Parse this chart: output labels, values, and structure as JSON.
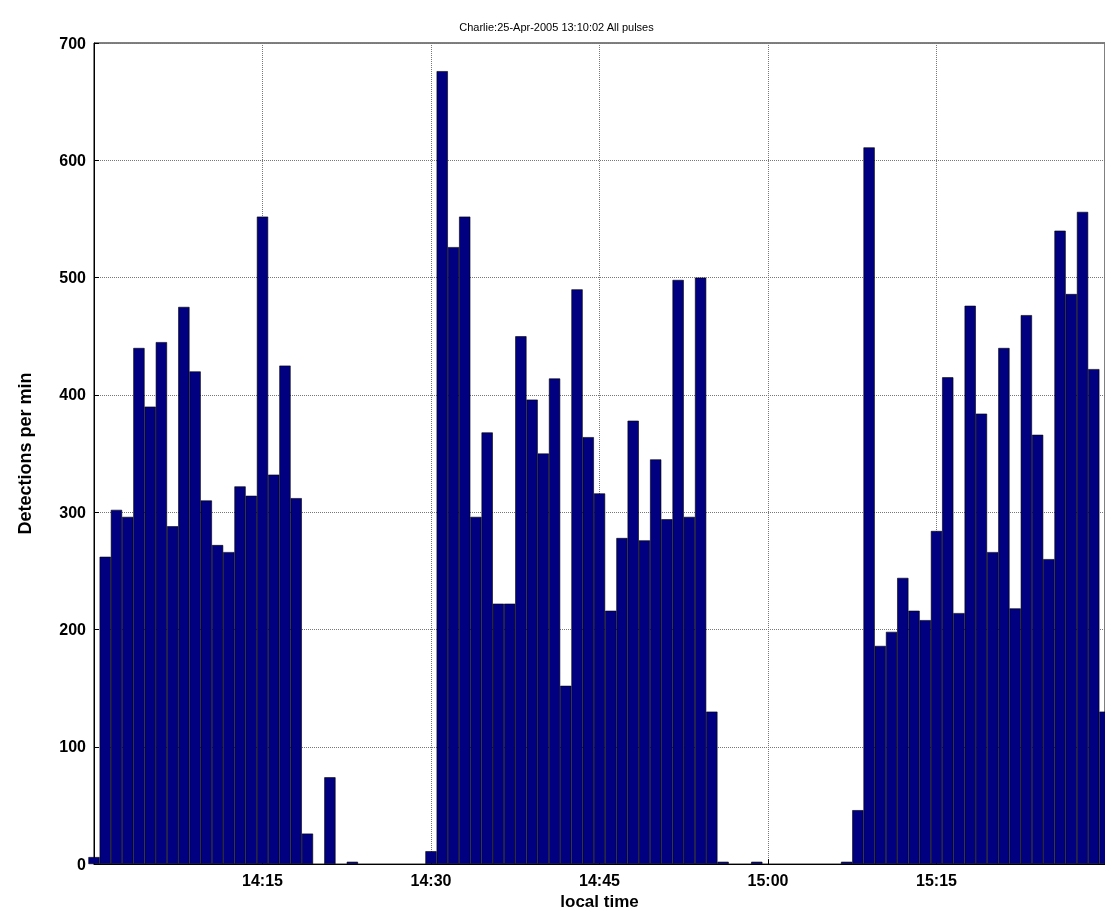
{
  "chart_data": {
    "type": "bar",
    "title": "Charlie:25-Apr-2005 13:10:02 All pulses",
    "xlabel": "local time",
    "ylabel": "Detections per min",
    "x": [
      "2005-04-25T14:00",
      "2005-04-25T14:01",
      "2005-04-25T14:02",
      "2005-04-25T14:03",
      "2005-04-25T14:04",
      "2005-04-25T14:05",
      "2005-04-25T14:06",
      "2005-04-25T14:07",
      "2005-04-25T14:08",
      "2005-04-25T14:09",
      "2005-04-25T14:10",
      "2005-04-25T14:11",
      "2005-04-25T14:12",
      "2005-04-25T14:13",
      "2005-04-25T14:14",
      "2005-04-25T14:15",
      "2005-04-25T14:16",
      "2005-04-25T14:17",
      "2005-04-25T14:18",
      "2005-04-25T14:19",
      "2005-04-25T14:20",
      "2005-04-25T14:21",
      "2005-04-25T14:22",
      "2005-04-25T14:23",
      "2005-04-25T14:24",
      "2005-04-25T14:25",
      "2005-04-25T14:26",
      "2005-04-25T14:27",
      "2005-04-25T14:28",
      "2005-04-25T14:29",
      "2005-04-25T14:30",
      "2005-04-25T14:31",
      "2005-04-25T14:32",
      "2005-04-25T14:33",
      "2005-04-25T14:34",
      "2005-04-25T14:35",
      "2005-04-25T14:36",
      "2005-04-25T14:37",
      "2005-04-25T14:38",
      "2005-04-25T14:39",
      "2005-04-25T14:40",
      "2005-04-25T14:41",
      "2005-04-25T14:42",
      "2005-04-25T14:43",
      "2005-04-25T14:44",
      "2005-04-25T14:45",
      "2005-04-25T14:46",
      "2005-04-25T14:47",
      "2005-04-25T14:48",
      "2005-04-25T14:49",
      "2005-04-25T14:50",
      "2005-04-25T14:51",
      "2005-04-25T14:52",
      "2005-04-25T14:53",
      "2005-04-25T14:54",
      "2005-04-25T14:55",
      "2005-04-25T14:56",
      "2005-04-25T14:57",
      "2005-04-25T14:58",
      "2005-04-25T14:59",
      "2005-04-25T15:00",
      "2005-04-25T15:01",
      "2005-04-25T15:02",
      "2005-04-25T15:03",
      "2005-04-25T15:04",
      "2005-04-25T15:05",
      "2005-04-25T15:06",
      "2005-04-25T15:07",
      "2005-04-25T15:08",
      "2005-04-25T15:09",
      "2005-04-25T15:10",
      "2005-04-25T15:11",
      "2005-04-25T15:12",
      "2005-04-25T15:13",
      "2005-04-25T15:14",
      "2005-04-25T15:15",
      "2005-04-25T15:16",
      "2005-04-25T15:17",
      "2005-04-25T15:18",
      "2005-04-25T15:19",
      "2005-04-25T15:20",
      "2005-04-25T15:21",
      "2005-04-25T15:22",
      "2005-04-25T15:23",
      "2005-04-25T15:24",
      "2005-04-25T15:25",
      "2005-04-25T15:26",
      "2005-04-25T15:27",
      "2005-04-25T15:28",
      "2005-04-25T15:29",
      "2005-04-25T15:30"
    ],
    "values": [
      6,
      262,
      302,
      296,
      440,
      390,
      445,
      288,
      475,
      420,
      310,
      272,
      266,
      322,
      314,
      552,
      332,
      425,
      312,
      26,
      0,
      74,
      0,
      2,
      0,
      0,
      0,
      0,
      0,
      0,
      11,
      676,
      526,
      552,
      296,
      368,
      222,
      222,
      450,
      396,
      350,
      414,
      152,
      490,
      364,
      316,
      216,
      278,
      378,
      276,
      345,
      294,
      498,
      296,
      500,
      130,
      2,
      0,
      0,
      2,
      0,
      0,
      0,
      0,
      0,
      0,
      0,
      2,
      46,
      611,
      186,
      198,
      244,
      216,
      208,
      284,
      415,
      214,
      476,
      384,
      266,
      440,
      218,
      468,
      366,
      260,
      540,
      486,
      556,
      422,
      130
    ],
    "color": "#000080",
    "xlim": [
      "2005-04-25T14:00",
      "2005-04-25T15:30"
    ],
    "xticks": [
      {
        "value": "2005-04-25T14:15",
        "label": "14:15"
      },
      {
        "value": "2005-04-25T14:30",
        "label": "14:30"
      },
      {
        "value": "2005-04-25T14:45",
        "label": "14:45"
      },
      {
        "value": "2005-04-25T15:00",
        "label": "15:00"
      },
      {
        "value": "2005-04-25T15:15",
        "label": "15:15"
      }
    ],
    "ylim": [
      0,
      700
    ],
    "yticks": [
      0,
      100,
      200,
      300,
      400,
      500,
      600,
      700
    ],
    "grid": true
  }
}
